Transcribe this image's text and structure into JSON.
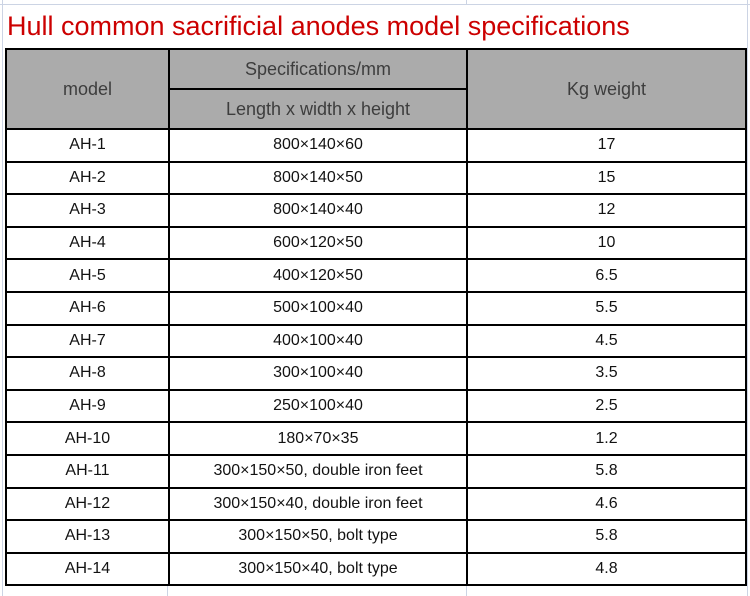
{
  "page": {
    "title": "Hull common sacrificial anodes model specifications"
  },
  "colors": {
    "title_red": "#cc0000",
    "header_bg": "#ababab",
    "header_text": "#3d3d3d",
    "body_text": "#121212",
    "table_border": "#000000",
    "grid_line": "#ccd4e4"
  },
  "table": {
    "col_headers": {
      "model": "model",
      "spec_group": "Specifications/mm",
      "spec_detail": "Length x width x height",
      "weight": "Kg weight"
    },
    "rows": [
      {
        "model": "AH-1",
        "spec": "800×140×60",
        "weight": "17"
      },
      {
        "model": "AH-2",
        "spec": "800×140×50",
        "weight": "15"
      },
      {
        "model": "AH-3",
        "spec": "800×140×40",
        "weight": "12"
      },
      {
        "model": "AH-4",
        "spec": "600×120×50",
        "weight": "10"
      },
      {
        "model": "AH-5",
        "spec": "400×120×50",
        "weight": "6.5"
      },
      {
        "model": "AH-6",
        "spec": "500×100×40",
        "weight": "5.5"
      },
      {
        "model": "AH-7",
        "spec": "400×100×40",
        "weight": "4.5"
      },
      {
        "model": "AH-8",
        "spec": "300×100×40",
        "weight": "3.5"
      },
      {
        "model": "AH-9",
        "spec": "250×100×40",
        "weight": "2.5"
      },
      {
        "model": "AH-10",
        "spec": "180×70×35",
        "weight": "1.2"
      },
      {
        "model": "AH-11",
        "spec": "300×150×50, double iron feet",
        "weight": "5.8"
      },
      {
        "model": "AH-12",
        "spec": "300×150×40, double iron feet",
        "weight": "4.6"
      },
      {
        "model": "AH-13",
        "spec": "300×150×50, bolt type",
        "weight": "5.8"
      },
      {
        "model": "AH-14",
        "spec": "300×150×40, bolt type",
        "weight": "4.8"
      }
    ]
  }
}
